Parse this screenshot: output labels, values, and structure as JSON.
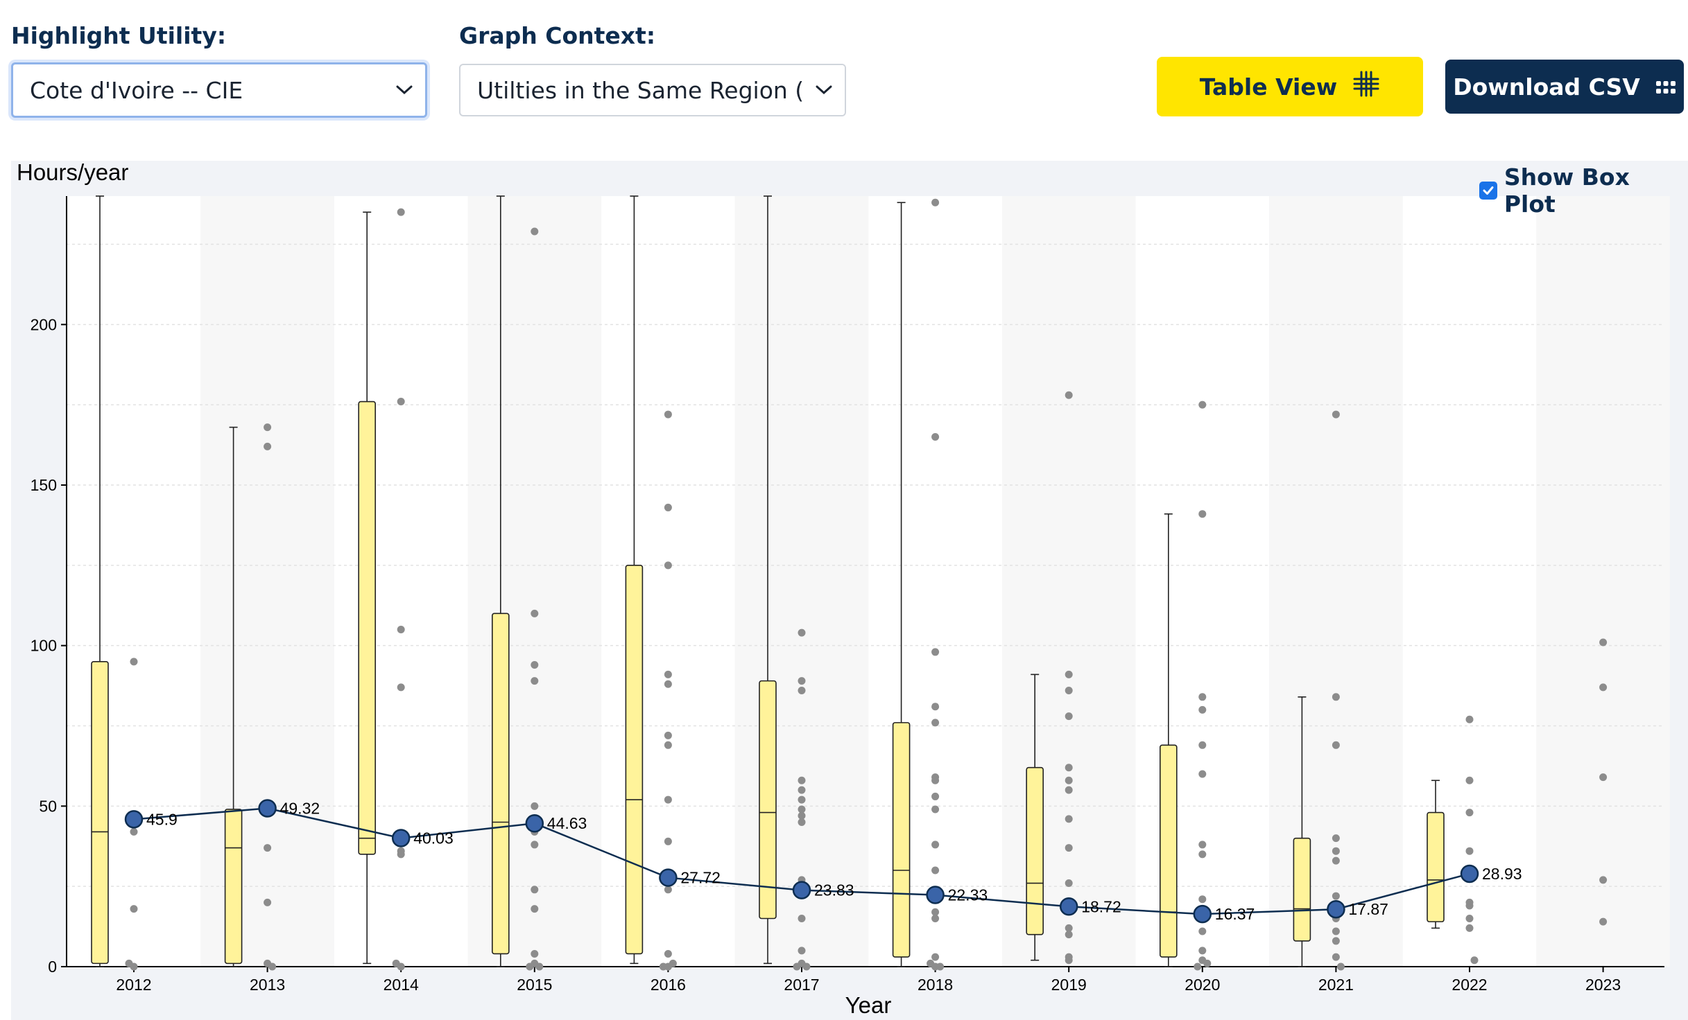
{
  "controls": {
    "highlight_label": "Highlight Utility:",
    "highlight_value": "Cote d'Ivoire -- CIE",
    "context_label": "Graph Context:",
    "context_value": "Utilties in the Same Region (",
    "table_view_label": "Table View",
    "download_label": "Download CSV",
    "show_box_plot_label": "Show Box Plot",
    "show_box_plot_checked": true
  },
  "colors": {
    "navy": "#0d2d50",
    "yellow": "#ffe500",
    "box_fill": "#fff39a",
    "highlight_point": "#3a64a8",
    "outlier": "#8c8c8c"
  },
  "chart_data": {
    "type": "box",
    "y_unit_label": "Hours/year",
    "xlabel": "Year",
    "ylim": [
      0,
      240
    ],
    "yticks": [
      0,
      50,
      100,
      150,
      200
    ],
    "grid": true,
    "categories": [
      "2012",
      "2013",
      "2014",
      "2015",
      "2016",
      "2017",
      "2018",
      "2019",
      "2020",
      "2021",
      "2022",
      "2023"
    ],
    "boxes": [
      {
        "year": "2012",
        "min": 0,
        "q1": 1,
        "median": 42,
        "q3": 95,
        "max": 240
      },
      {
        "year": "2013",
        "min": 0,
        "q1": 1,
        "median": 37,
        "q3": 49,
        "max": 168
      },
      {
        "year": "2014",
        "min": 1,
        "q1": 35,
        "median": 40,
        "q3": 176,
        "max": 235
      },
      {
        "year": "2015",
        "min": 0,
        "q1": 4,
        "median": 45,
        "q3": 110,
        "max": 240
      },
      {
        "year": "2016",
        "min": 1,
        "q1": 4,
        "median": 52,
        "q3": 125,
        "max": 240
      },
      {
        "year": "2017",
        "min": 1,
        "q1": 15,
        "median": 48,
        "q3": 89,
        "max": 240
      },
      {
        "year": "2018",
        "min": 0,
        "q1": 3,
        "median": 30,
        "q3": 76,
        "max": 238
      },
      {
        "year": "2019",
        "min": 2,
        "q1": 10,
        "median": 26,
        "q3": 62,
        "max": 91
      },
      {
        "year": "2020",
        "min": 0,
        "q1": 3,
        "median": 17,
        "q3": 69,
        "max": 141
      },
      {
        "year": "2021",
        "min": 0,
        "q1": 8,
        "median": 18,
        "q3": 40,
        "max": 84
      },
      {
        "year": "2022",
        "min": 12,
        "q1": 14,
        "median": 27,
        "q3": 48,
        "max": 58
      },
      {
        "year": "2023",
        "min": null,
        "q1": null,
        "median": null,
        "q3": null,
        "max": null
      }
    ],
    "points": [
      {
        "year": "2012",
        "values": [
          95,
          42,
          18,
          1,
          0
        ]
      },
      {
        "year": "2013",
        "values": [
          168,
          162,
          37,
          20,
          1,
          0
        ]
      },
      {
        "year": "2014",
        "values": [
          235,
          176,
          105,
          87,
          36,
          35,
          1,
          0
        ]
      },
      {
        "year": "2015",
        "values": [
          229,
          110,
          94,
          89,
          50,
          42,
          38,
          24,
          18,
          4,
          1,
          0,
          0
        ]
      },
      {
        "year": "2016",
        "values": [
          172,
          143,
          125,
          91,
          88,
          72,
          69,
          52,
          39,
          24,
          4,
          1,
          0,
          0
        ]
      },
      {
        "year": "2017",
        "values": [
          104,
          89,
          86,
          58,
          55,
          52,
          49,
          47,
          45,
          27,
          24,
          15,
          5,
          1,
          0,
          0
        ]
      },
      {
        "year": "2018",
        "values": [
          238,
          165,
          98,
          81,
          76,
          59,
          58,
          53,
          49,
          38,
          30,
          21,
          17,
          15,
          3,
          1,
          0,
          0
        ]
      },
      {
        "year": "2019",
        "values": [
          178,
          91,
          86,
          78,
          62,
          58,
          55,
          46,
          37,
          26,
          12,
          10,
          3,
          2
        ]
      },
      {
        "year": "2020",
        "values": [
          175,
          141,
          84,
          80,
          69,
          60,
          38,
          35,
          21,
          17,
          15,
          11,
          5,
          2,
          1,
          0
        ]
      },
      {
        "year": "2021",
        "values": [
          172,
          84,
          69,
          40,
          36,
          33,
          22,
          15,
          11,
          8,
          3,
          0
        ]
      },
      {
        "year": "2022",
        "values": [
          77,
          58,
          48,
          36,
          20,
          19,
          15,
          12,
          2
        ]
      },
      {
        "year": "2023",
        "values": [
          101,
          87,
          59,
          27,
          14
        ]
      }
    ],
    "series": [
      {
        "years": [
          "2012",
          "2013",
          "2014",
          "2015",
          "2016",
          "2017",
          "2018",
          "2019",
          "2020",
          "2021",
          "2022"
        ],
        "values": [
          45.9,
          49.32,
          40.03,
          44.63,
          27.72,
          23.83,
          22.33,
          18.72,
          16.37,
          17.87,
          28.93
        ],
        "labels": [
          "45.9",
          "49.32",
          "40.03",
          "44.63",
          "27.72",
          "23.83",
          "22.33",
          "18.72",
          "16.37",
          "17.87",
          "28.93"
        ]
      }
    ]
  }
}
